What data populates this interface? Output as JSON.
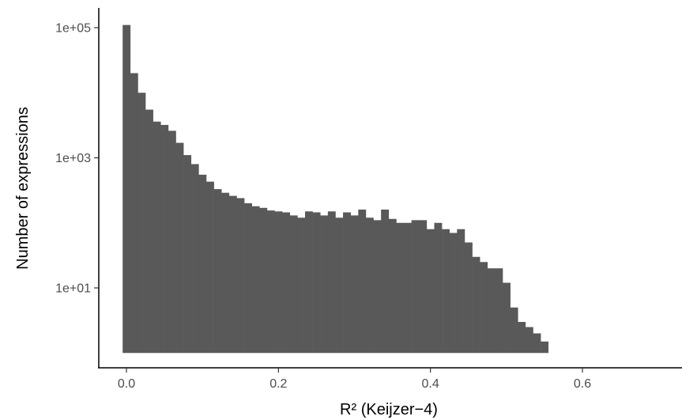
{
  "chart_data": {
    "type": "bar",
    "subtype": "histogram",
    "xlabel": "R² (Keijzer−4)",
    "ylabel": "Number of expressions",
    "yscale": "log10",
    "xlim": [
      -0.03,
      0.72
    ],
    "ylim": [
      0.6,
      150000
    ],
    "grid": false,
    "bar_color": "#595959",
    "baseline": 1,
    "bin_width": 0.01,
    "x_ticks": [
      {
        "value": 0.0,
        "label": "0.0"
      },
      {
        "value": 0.2,
        "label": "0.2"
      },
      {
        "value": 0.4,
        "label": "0.4"
      },
      {
        "value": 0.6,
        "label": "0.6"
      }
    ],
    "y_ticks": [
      {
        "value": 10,
        "label": "1e+01"
      },
      {
        "value": 1000,
        "label": "1e+03"
      },
      {
        "value": 100000,
        "label": "1e+05"
      }
    ],
    "bin_starts": [
      -0.005,
      0.005,
      0.015,
      0.025,
      0.035,
      0.045,
      0.055,
      0.065,
      0.075,
      0.085,
      0.095,
      0.105,
      0.115,
      0.125,
      0.135,
      0.145,
      0.155,
      0.165,
      0.175,
      0.185,
      0.195,
      0.205,
      0.215,
      0.225,
      0.235,
      0.245,
      0.255,
      0.265,
      0.275,
      0.285,
      0.295,
      0.305,
      0.315,
      0.325,
      0.335,
      0.345,
      0.355,
      0.365,
      0.375,
      0.385,
      0.395,
      0.405,
      0.415,
      0.425,
      0.435,
      0.445,
      0.455,
      0.465,
      0.475,
      0.485,
      0.495,
      0.505,
      0.515,
      0.525,
      0.535,
      0.545,
      0.555,
      0.565,
      0.575,
      0.585,
      0.595,
      0.605,
      0.615,
      0.625,
      0.635,
      0.645,
      0.655,
      0.665,
      0.675,
      0.685,
      0.695
    ],
    "counts": [
      110000,
      20000,
      10000,
      5500,
      3600,
      3200,
      2600,
      1700,
      1100,
      800,
      550,
      430,
      330,
      290,
      260,
      240,
      200,
      180,
      170,
      155,
      150,
      145,
      130,
      120,
      150,
      145,
      130,
      150,
      120,
      145,
      130,
      160,
      120,
      110,
      160,
      115,
      100,
      100,
      110,
      110,
      80,
      100,
      80,
      70,
      80,
      50,
      30,
      25,
      20,
      20,
      12,
      5,
      3,
      2.5,
      2,
      1.5,
      1,
      0,
      1,
      0,
      1,
      0,
      1,
      0,
      0,
      0,
      0,
      0,
      0,
      0,
      1
    ],
    "sliver_bins": [
      0.695
    ]
  }
}
